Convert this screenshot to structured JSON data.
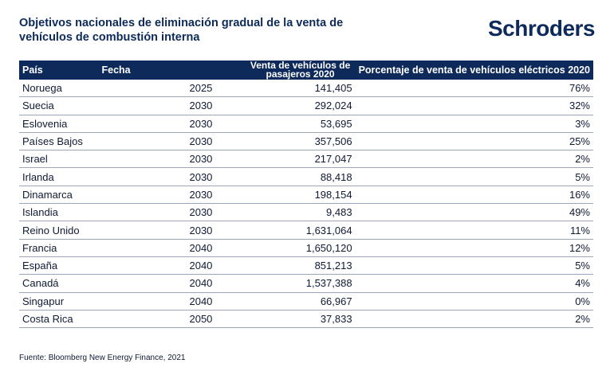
{
  "title": "Objetivos nacionales de eliminación gradual de la venta de vehículos de combustión interna",
  "logo": "Schroders",
  "table": {
    "headers": [
      "País",
      "Fecha",
      "Venta de vehículos de pasajeros 2020",
      "Porcentaje de venta de vehículos eléctricos 2020"
    ],
    "rows": [
      [
        "Noruega",
        "2025",
        "141,405",
        "76%"
      ],
      [
        "Suecia",
        "2030",
        "292,024",
        "32%"
      ],
      [
        "Eslovenia",
        "2030",
        "53,695",
        "3%"
      ],
      [
        "Países Bajos",
        "2030",
        "357,506",
        "25%"
      ],
      [
        "Israel",
        "2030",
        "217,047",
        "2%"
      ],
      [
        "Irlanda",
        "2030",
        "88,418",
        "5%"
      ],
      [
        "Dinamarca",
        "2030",
        "198,154",
        "16%"
      ],
      [
        "Islandia",
        "2030",
        "9,483",
        "49%"
      ],
      [
        "Reino Unido",
        "2030",
        "1,631,064",
        "11%"
      ],
      [
        "Francia",
        "2040",
        "1,650,120",
        "12%"
      ],
      [
        "España",
        "2040",
        "851,213",
        "5%"
      ],
      [
        "Canadá",
        "2040",
        "1,537,388",
        "4%"
      ],
      [
        "Singapur",
        "2040",
        "66,967",
        "0%"
      ],
      [
        "Costa Rica",
        "2050",
        "37,833",
        "2%"
      ]
    ]
  },
  "footer": "Fuente: Bloomberg New Energy Finance, 2021",
  "colors": {
    "navy": "#0d2a5a",
    "rule": "#9aa6bb"
  }
}
